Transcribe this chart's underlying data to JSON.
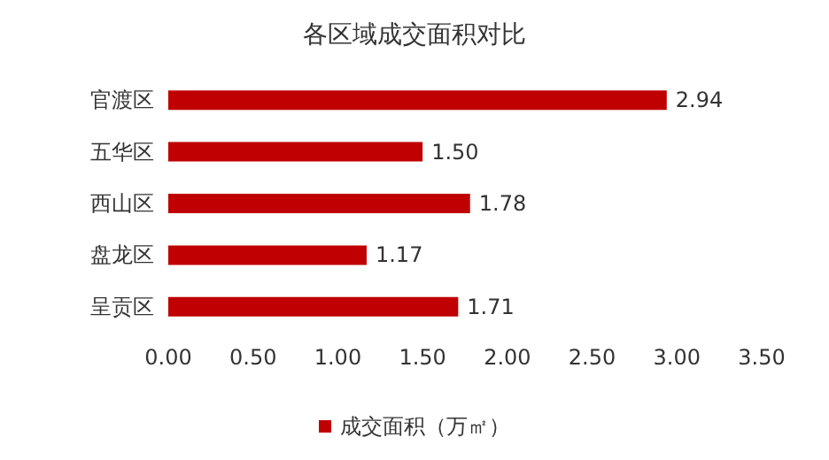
{
  "chart_data": {
    "type": "bar",
    "orientation": "horizontal",
    "title": "各区域成交面积对比",
    "categories": [
      "官渡区",
      "五华区",
      "西山区",
      "盘龙区",
      "呈贡区"
    ],
    "series": [
      {
        "name": "成交面积（万㎡）",
        "color": "#c00000",
        "values": [
          2.94,
          1.5,
          1.78,
          1.17,
          1.71
        ],
        "value_labels": [
          "2.94",
          "1.50",
          "1.78",
          "1.17",
          "1.71"
        ]
      }
    ],
    "xlim": [
      0,
      3.5
    ],
    "xticks": [
      {
        "value": 0,
        "label": "0.00"
      },
      {
        "value": 0.5,
        "label": "0.50"
      },
      {
        "value": 1,
        "label": "1.00"
      },
      {
        "value": 1.5,
        "label": "1.50"
      },
      {
        "value": 2,
        "label": "2.00"
      },
      {
        "value": 2.5,
        "label": "2.50"
      },
      {
        "value": 3,
        "label": "3.00"
      },
      {
        "value": 3.5,
        "label": "3.50"
      }
    ],
    "grid": false,
    "legend": "bottom"
  }
}
